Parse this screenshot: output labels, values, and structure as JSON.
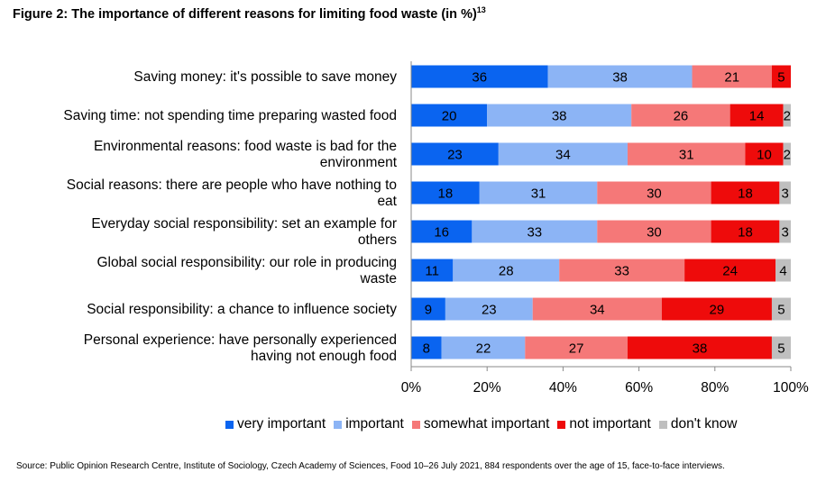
{
  "figure": {
    "title": "Figure 2: The importance of different reasons for limiting food waste (in %)",
    "footnote_mark": "13"
  },
  "chart_data": {
    "type": "bar",
    "orientation": "horizontal",
    "stacked": true,
    "categories": [
      "Saving money: it's possible to save money",
      "Saving time: not spending time preparing wasted food",
      "Environmental reasons: food waste is bad for the environment",
      "Social reasons: there are people who have nothing to eat",
      "Everyday social responsibility: set an example for others",
      "Global social responsibility: our role in producing waste",
      "Social responsibility: a chance to influence society",
      "Personal experience: have personally experienced having not enough food"
    ],
    "series": [
      {
        "name": "very important",
        "color": "#0a64f0",
        "values": [
          36,
          20,
          23,
          18,
          16,
          11,
          9,
          8
        ]
      },
      {
        "name": "important",
        "color": "#8cb4f5",
        "values": [
          38,
          38,
          34,
          31,
          33,
          28,
          23,
          22
        ]
      },
      {
        "name": "somewhat important",
        "color": "#f57878",
        "values": [
          21,
          26,
          31,
          30,
          30,
          33,
          34,
          27
        ]
      },
      {
        "name": "not important",
        "color": "#ee0b0b",
        "values": [
          5,
          14,
          10,
          18,
          18,
          24,
          29,
          38
        ]
      },
      {
        "name": "don't know",
        "color": "#bfbfbf",
        "values": [
          0,
          2,
          2,
          3,
          3,
          4,
          5,
          5
        ]
      }
    ],
    "xlim": [
      0,
      100
    ],
    "x_ticks": [
      "0%",
      "20%",
      "40%",
      "60%",
      "80%",
      "100%"
    ],
    "legend_position": "bottom",
    "grid": false
  },
  "source": "Source: Public Opinion Research Centre, Institute of Sociology, Czech Academy of Sciences, Food 10–26 July 2021, 884 respondents over the age of 15, face-to-face interviews."
}
